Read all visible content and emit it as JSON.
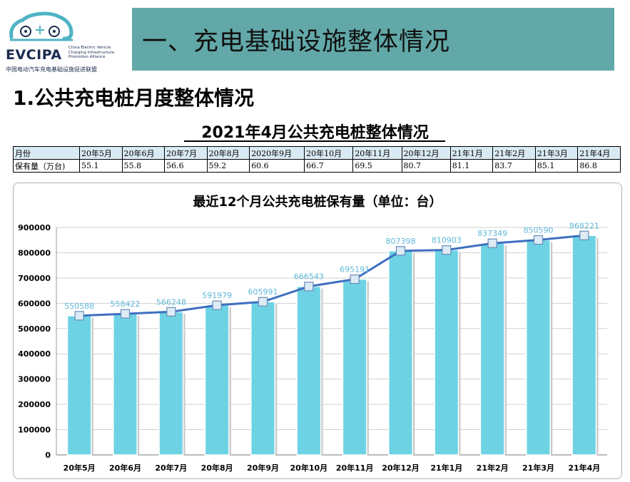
{
  "logo": {
    "name": "EVCIPA",
    "english": "China Electric Vehicle Charging Infrastructure Promotion Alliance",
    "chinese": "中国电动汽车充电基础设施促进联盟"
  },
  "header": {
    "title": "一、充电基础设施整体情况"
  },
  "section": {
    "subtitle": "1.公共充电桩月度整体情况"
  },
  "table": {
    "title": "2021年4月公共充电桩整体情况",
    "header_label": "月份",
    "row_label": "保有量（万台)",
    "columns": [
      "20年5月",
      "20年6月",
      "20年7月",
      "20年8月",
      "2020年9月",
      "20年10月",
      "20年11月",
      "20年12月",
      "21年1月",
      "21年2月",
      "21年3月",
      "21年4月"
    ],
    "values": [
      "55.1",
      "55.8",
      "56.6",
      "59.2",
      "60.6",
      "66.7",
      "69.5",
      "80.7",
      "81.1",
      "83.7",
      "85.1",
      "86.8"
    ]
  },
  "chart_data": {
    "type": "bar",
    "title": "最近12个月公共充电桩保有量（单位：台）",
    "categories": [
      "20年5月",
      "20年6月",
      "20年7月",
      "20年8月",
      "20年9月",
      "20年10月",
      "20年11月",
      "20年12月",
      "21年1月",
      "21年2月",
      "21年3月",
      "21年4月"
    ],
    "values": [
      550588,
      558422,
      566248,
      591979,
      605991,
      666543,
      695191,
      807398,
      810903,
      837349,
      850590,
      868221
    ],
    "ylim": [
      0,
      900000
    ],
    "yticks": [
      0,
      100000,
      200000,
      300000,
      400000,
      500000,
      600000,
      700000,
      800000,
      900000
    ],
    "overlay_line": true,
    "grid": true,
    "colors": {
      "bar": "#6dd3e4",
      "line": "#3e6fc0",
      "label": "#5fb8d8"
    }
  }
}
